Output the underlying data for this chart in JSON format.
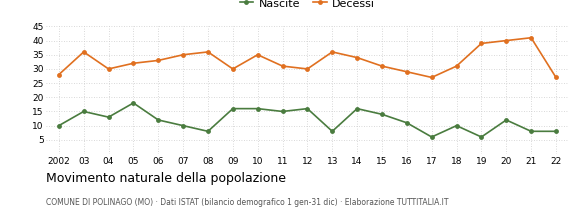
{
  "years": [
    2002,
    2003,
    2004,
    2005,
    2006,
    2007,
    2008,
    2009,
    2010,
    2011,
    2012,
    2013,
    2014,
    2015,
    2016,
    2017,
    2018,
    2019,
    2020,
    2021,
    2022
  ],
  "nascite": [
    10,
    15,
    13,
    18,
    12,
    10,
    8,
    16,
    16,
    15,
    16,
    8,
    16,
    14,
    11,
    6,
    10,
    6,
    12,
    8,
    8
  ],
  "decessi": [
    28,
    36,
    30,
    32,
    33,
    35,
    36,
    30,
    35,
    31,
    30,
    36,
    34,
    31,
    29,
    27,
    31,
    39,
    40,
    41,
    27
  ],
  "nascite_color": "#4a7c3f",
  "decessi_color": "#e07020",
  "ylim": [
    0,
    45
  ],
  "yticks": [
    0,
    5,
    10,
    15,
    20,
    25,
    30,
    35,
    40,
    45
  ],
  "title": "Movimento naturale della popolazione",
  "subtitle": "COMUNE DI POLINAGO (MO) · Dati ISTAT (bilancio demografico 1 gen-31 dic) · Elaborazione TUTTITALIA.IT",
  "legend_nascite": "Nascite",
  "legend_decessi": "Decessi",
  "background_color": "#ffffff",
  "grid_color": "#cccccc"
}
